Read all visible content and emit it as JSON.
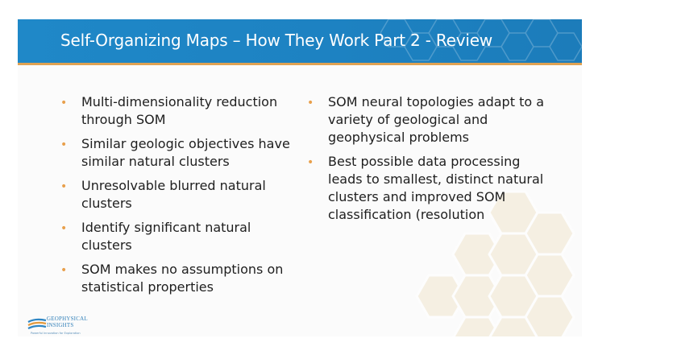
{
  "slide": {
    "title": "Self-Organizing Maps – How They Work Part 2 - Review"
  },
  "bullets_left": [
    "Multi-dimensionality reduction through SOM",
    "Similar geologic objectives have similar natural clusters",
    "Unresolvable blurred natural clusters",
    "Identify significant natural clusters",
    "SOM makes no assumptions on statistical properties"
  ],
  "bullets_right": [
    "SOM neural topologies adapt to a variety of geological and geophysical problems",
    "Best possible data processing leads to smallest, distinct natural clusters and improved SOM classification (resolution"
  ],
  "logo": {
    "line1": "GEOPHYSICAL",
    "line2": "INSIGHTS",
    "tagline": "Powerful Innovation for Exploration"
  },
  "colors": {
    "title_bar": "#1f88c8",
    "accent": "#e0a252",
    "bullet": "#e8a04c",
    "text": "#1e1e1e"
  },
  "icons": {
    "bullet": "bullet-dot-icon",
    "logo": "geophysical-insights-logo-icon",
    "decoration": "hexagon-pattern-icon"
  }
}
